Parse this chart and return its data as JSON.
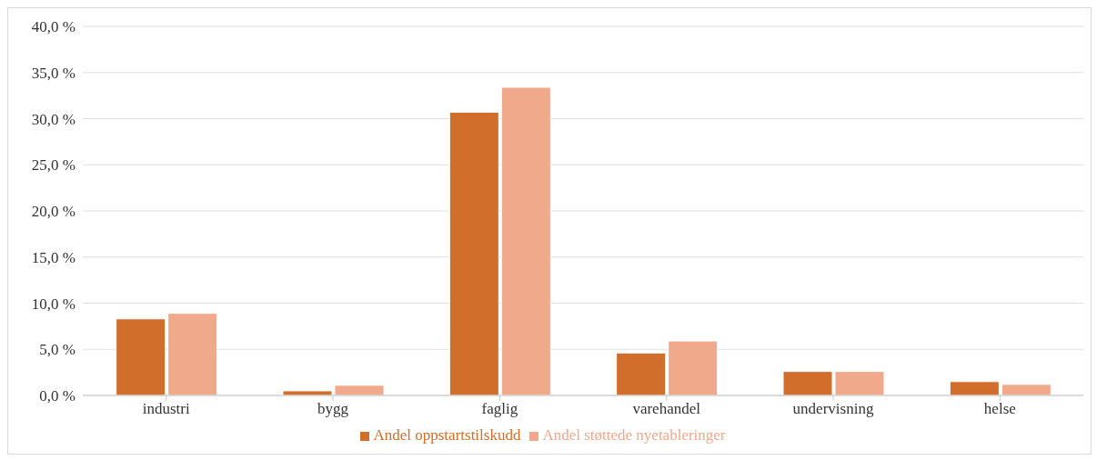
{
  "chart_data": {
    "type": "bar",
    "categories": [
      "industri",
      "bygg",
      "faglig",
      "varehandel",
      "undervisning",
      "helse"
    ],
    "series": [
      {
        "name": "Andel oppstartstilskudd",
        "color": "#d26e2b",
        "values": [
          8.3,
          0.5,
          30.7,
          4.6,
          2.6,
          1.5
        ]
      },
      {
        "name": "Andel støttede nyetableringer",
        "color": "#f0a98a",
        "values": [
          8.9,
          1.1,
          33.4,
          5.9,
          2.6,
          1.2
        ]
      }
    ],
    "ylim": [
      0,
      40
    ],
    "yticks": [
      {
        "value": 0,
        "label": "0,0 %"
      },
      {
        "value": 5,
        "label": "5,0 %"
      },
      {
        "value": 10,
        "label": "10,0 %"
      },
      {
        "value": 15,
        "label": "15,0 %"
      },
      {
        "value": 20,
        "label": "20,0 %"
      },
      {
        "value": 25,
        "label": "25,0 %"
      },
      {
        "value": 30,
        "label": "30,0 %"
      },
      {
        "value": 35,
        "label": "35,0 %"
      },
      {
        "value": 40,
        "label": "40,0 %"
      }
    ],
    "grid": "y",
    "legend": "bottom"
  }
}
